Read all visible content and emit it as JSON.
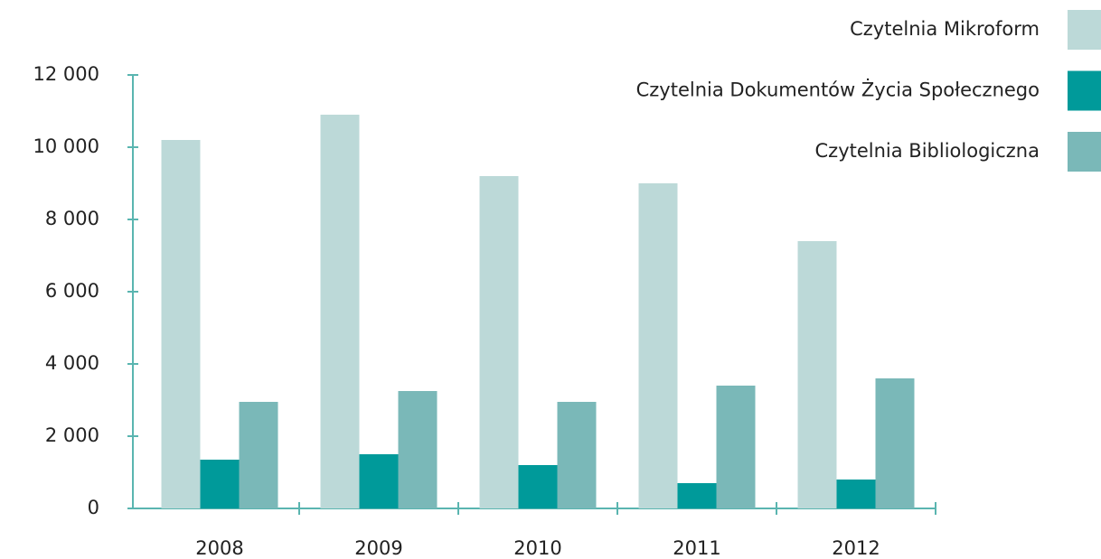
{
  "chart_data": {
    "type": "bar",
    "categories": [
      "2008",
      "2009",
      "2010",
      "2011",
      "2012"
    ],
    "series": [
      {
        "name": "Czytelnia Mikroform",
        "color": "#bcd9d8",
        "values": [
          10200,
          10900,
          9200,
          9000,
          7400
        ]
      },
      {
        "name": "Czytelnia Dokumentów Życia Społecznego",
        "color": "#009a9a",
        "values": [
          1350,
          1500,
          1200,
          700,
          800
        ]
      },
      {
        "name": "Czytelnia Bibliologiczna",
        "color": "#7ab8b8",
        "values": [
          2950,
          3250,
          2950,
          3400,
          3600
        ]
      }
    ],
    "ylim": [
      0,
      12000
    ],
    "yticks": [
      0,
      {
        "value": 2000,
        "label": "2 000"
      },
      {
        "value": 4000,
        "label": "4 000"
      },
      {
        "value": 6000,
        "label": "6 000"
      },
      {
        "value": 8000,
        "label": "8 000"
      },
      {
        "value": 10000,
        "label": "10 000"
      },
      {
        "value": 12000,
        "label": "12 000"
      }
    ],
    "legend": "top-right"
  }
}
